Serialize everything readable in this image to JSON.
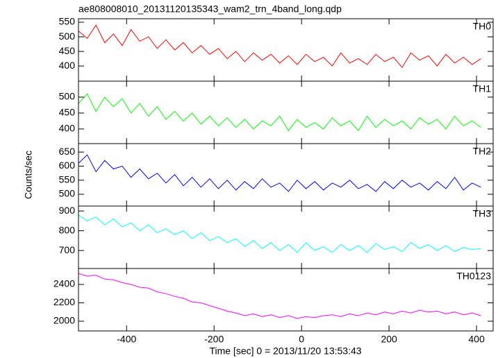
{
  "chart_data": [
    {
      "type": "line",
      "title": "ae808008010_20131120135343_wam2_trn_4band_long.qdp",
      "x": [
        -510,
        -490,
        -470,
        -450,
        -430,
        -410,
        -390,
        -370,
        -350,
        -330,
        -310,
        -290,
        -270,
        -250,
        -230,
        -210,
        -190,
        -170,
        -150,
        -130,
        -110,
        -90,
        -70,
        -50,
        -30,
        -10,
        10,
        30,
        50,
        70,
        90,
        110,
        130,
        150,
        170,
        190,
        210,
        230,
        250,
        270,
        290,
        310,
        330,
        350,
        370,
        390,
        410
      ],
      "series": [
        {
          "name": "TH0",
          "color": "#ff0000",
          "values": [
            520,
            495,
            540,
            480,
            510,
            470,
            525,
            485,
            500,
            460,
            490,
            455,
            480,
            445,
            470,
            440,
            460,
            425,
            450,
            415,
            445,
            420,
            440,
            410,
            435,
            405,
            440,
            415,
            430,
            400,
            445,
            410,
            425,
            405,
            440,
            415,
            430,
            395,
            445,
            420,
            435,
            400,
            440,
            410,
            430,
            405,
            425
          ]
        }
      ],
      "xlim": [
        -510,
        438
      ],
      "ylim": [
        348,
        562
      ],
      "yticks": [
        400,
        450,
        500,
        550
      ]
    },
    {
      "type": "line",
      "x": [
        -510,
        -490,
        -470,
        -450,
        -430,
        -410,
        -390,
        -370,
        -350,
        -330,
        -310,
        -290,
        -270,
        -250,
        -230,
        -210,
        -190,
        -170,
        -150,
        -130,
        -110,
        -90,
        -70,
        -50,
        -30,
        -10,
        10,
        30,
        50,
        70,
        90,
        110,
        130,
        150,
        170,
        190,
        210,
        230,
        250,
        270,
        290,
        310,
        330,
        350,
        370,
        390,
        410
      ],
      "series": [
        {
          "name": "TH1",
          "color": "#00ff00",
          "values": [
            480,
            510,
            455,
            500,
            470,
            495,
            450,
            480,
            440,
            470,
            430,
            455,
            425,
            450,
            415,
            440,
            410,
            435,
            405,
            430,
            400,
            425,
            410,
            440,
            395,
            430,
            405,
            420,
            400,
            435,
            410,
            425,
            395,
            440,
            405,
            430,
            410,
            425,
            400,
            435,
            415,
            430,
            400,
            440,
            410,
            425,
            405
          ]
        }
      ],
      "xlim": [
        -510,
        438
      ],
      "ylim": [
        354,
        550
      ],
      "yticks": [
        400,
        450,
        500
      ]
    },
    {
      "type": "line",
      "ylabel": "Counts/sec",
      "x": [
        -510,
        -490,
        -470,
        -450,
        -430,
        -410,
        -390,
        -370,
        -350,
        -330,
        -310,
        -290,
        -270,
        -250,
        -230,
        -210,
        -190,
        -170,
        -150,
        -130,
        -110,
        -90,
        -70,
        -50,
        -30,
        -10,
        10,
        30,
        50,
        70,
        90,
        110,
        130,
        150,
        170,
        190,
        210,
        230,
        250,
        270,
        290,
        310,
        330,
        350,
        370,
        390,
        410
      ],
      "series": [
        {
          "name": "TH2",
          "color": "#0000ff",
          "values": [
            610,
            640,
            580,
            620,
            590,
            600,
            560,
            590,
            555,
            575,
            540,
            570,
            530,
            560,
            525,
            555,
            520,
            550,
            515,
            545,
            520,
            555,
            525,
            540,
            510,
            550,
            520,
            545,
            515,
            540,
            525,
            550,
            520,
            535,
            510,
            545,
            520,
            550,
            525,
            540,
            515,
            545,
            520,
            560,
            515,
            540,
            525
          ]
        }
      ],
      "xlim": [
        -510,
        438
      ],
      "ylim": [
        458,
        680
      ],
      "yticks": [
        500,
        550,
        600,
        650
      ]
    },
    {
      "type": "line",
      "x": [
        -510,
        -490,
        -470,
        -450,
        -430,
        -410,
        -390,
        -370,
        -350,
        -330,
        -310,
        -290,
        -270,
        -250,
        -230,
        -210,
        -190,
        -170,
        -150,
        -130,
        -110,
        -90,
        -70,
        -50,
        -30,
        -10,
        10,
        30,
        50,
        70,
        90,
        110,
        130,
        150,
        170,
        190,
        210,
        230,
        250,
        270,
        290,
        310,
        330,
        350,
        370,
        390,
        410
      ],
      "series": [
        {
          "name": "TH3",
          "color": "#00ffff",
          "values": [
            880,
            850,
            870,
            830,
            860,
            820,
            840,
            800,
            830,
            790,
            810,
            780,
            800,
            760,
            790,
            750,
            770,
            740,
            760,
            720,
            750,
            710,
            740,
            700,
            730,
            690,
            740,
            700,
            720,
            690,
            730,
            700,
            725,
            690,
            735,
            705,
            720,
            695,
            740,
            710,
            730,
            700,
            725,
            695,
            715,
            705,
            710
          ]
        }
      ],
      "xlim": [
        -510,
        438
      ],
      "ylim": [
        609,
        925
      ],
      "yticks": [
        700,
        800,
        900
      ]
    },
    {
      "type": "line",
      "xlabel": "Time [sec] 0 = 2013/11/20 13:53:43",
      "x": [
        -510,
        -490,
        -470,
        -450,
        -430,
        -410,
        -390,
        -370,
        -350,
        -330,
        -310,
        -290,
        -270,
        -250,
        -230,
        -210,
        -190,
        -170,
        -150,
        -130,
        -110,
        -90,
        -70,
        -50,
        -30,
        -10,
        10,
        30,
        50,
        70,
        90,
        110,
        130,
        150,
        170,
        190,
        210,
        230,
        250,
        270,
        290,
        310,
        330,
        350,
        370,
        390,
        410
      ],
      "series": [
        {
          "name": "TH0123",
          "color": "#ff00ff",
          "values": [
            2520,
            2490,
            2500,
            2460,
            2450,
            2420,
            2400,
            2370,
            2360,
            2320,
            2300,
            2270,
            2250,
            2210,
            2200,
            2170,
            2140,
            2110,
            2090,
            2060,
            2080,
            2050,
            2070,
            2040,
            2060,
            2030,
            2050,
            2040,
            2060,
            2070,
            2050,
            2080,
            2060,
            2090,
            2070,
            2100,
            2080,
            2110,
            2090,
            2120,
            2100,
            2110,
            2080,
            2100,
            2070,
            2090,
            2060
          ]
        }
      ],
      "xlim": [
        -510,
        438
      ],
      "ylim": [
        1894,
        2574
      ],
      "yticks": [
        2000,
        2200,
        2400
      ],
      "xticks": [
        -400,
        -200,
        0,
        200,
        400
      ]
    }
  ]
}
